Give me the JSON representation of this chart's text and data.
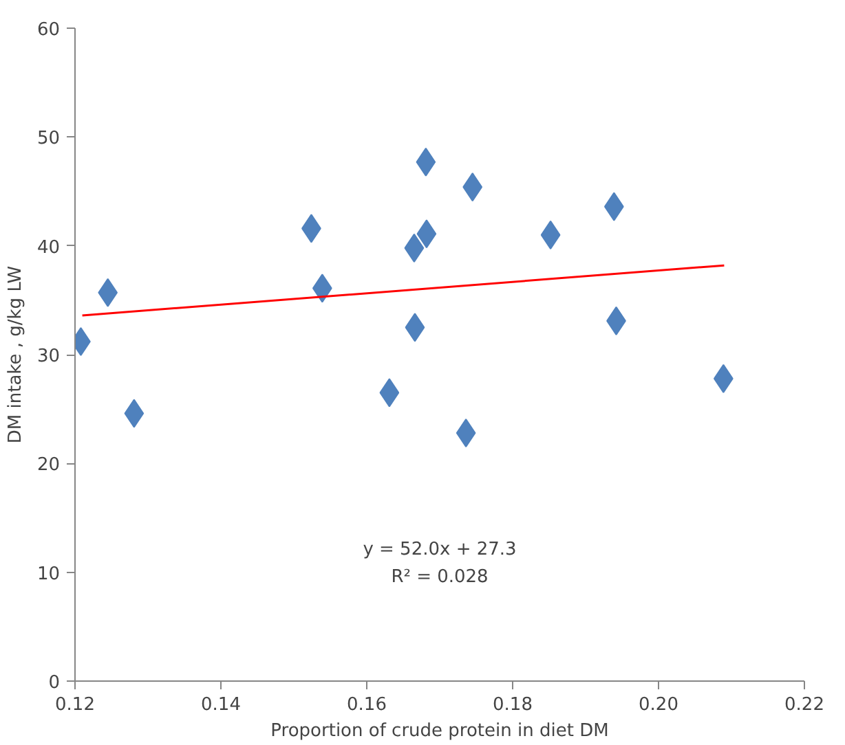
{
  "chart_data": {
    "type": "scatter",
    "xlabel": "Proportion of crude protein in diet DM",
    "ylabel": "DM intake , g/kg LW",
    "xlim": [
      0.12,
      0.22
    ],
    "xticks": [
      {
        "value": 0.12,
        "label": "0.12"
      },
      {
        "value": 0.14,
        "label": "0.14"
      },
      {
        "value": 0.16,
        "label": "0.16"
      },
      {
        "value": 0.18,
        "label": "0.18"
      },
      {
        "value": 0.2,
        "label": "0.20"
      },
      {
        "value": 0.22,
        "label": "0.22"
      }
    ],
    "ylim": [
      0,
      60
    ],
    "yticks": [
      0,
      10,
      20,
      30,
      40,
      50,
      60
    ],
    "grid": false,
    "series": [
      {
        "marker": "diamond",
        "color": "#4f81bd",
        "x": [
          0.1208,
          0.1245,
          0.1281,
          0.1524,
          0.1539,
          0.1631,
          0.1681,
          0.1745,
          0.1682,
          0.1665,
          0.1852,
          0.1939,
          0.1666,
          0.1942,
          0.1736,
          0.2089
        ],
        "values": [
          31.2,
          35.7,
          24.6,
          41.6,
          36.1,
          26.5,
          47.7,
          45.4,
          41.1,
          39.8,
          41.0,
          43.6,
          32.5,
          33.1,
          22.8,
          27.8
        ]
      },
      {
        "type": "line",
        "color": "#ff0000",
        "x": [
          0.121,
          0.209
        ],
        "values": [
          33.6,
          38.2
        ]
      }
    ],
    "annotations": [
      "y = 52.0x + 27.3",
      "R² = 0.028"
    ]
  }
}
